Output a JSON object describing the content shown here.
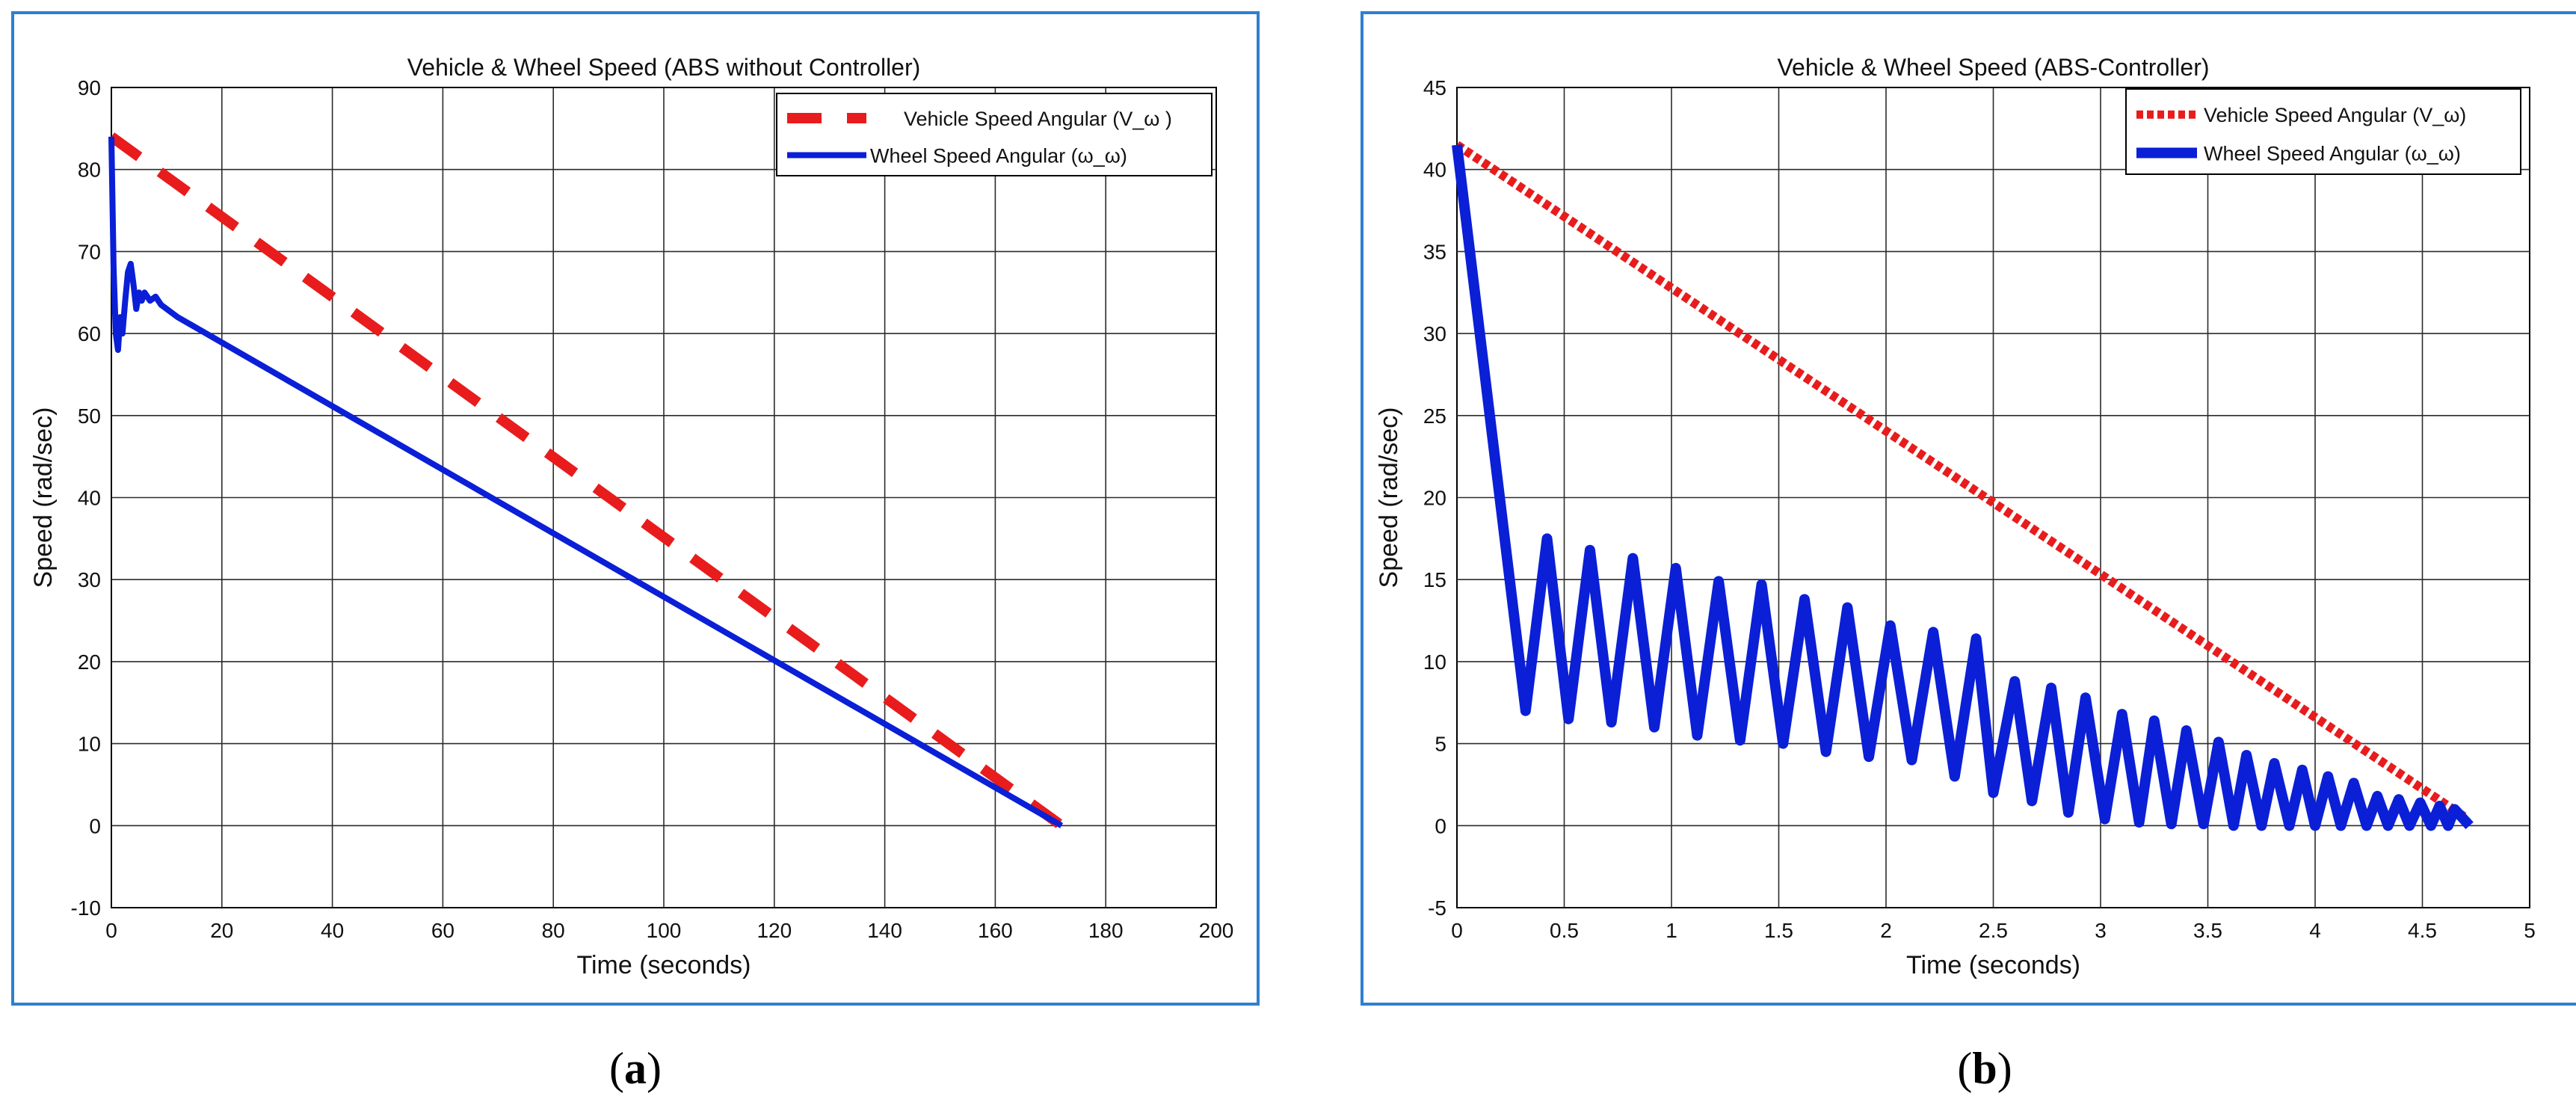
{
  "colors": {
    "frame": "#2f7fd0",
    "vehicle": "#e81c1c",
    "wheel": "#0a1fd6",
    "grid": "#2b2b2b",
    "axes_bg": "#ffffff"
  },
  "chart_data": [
    {
      "id": "a",
      "type": "line",
      "title": "Vehicle & Wheel Speed (ABS without Controller)",
      "xlabel": "Time (seconds)",
      "ylabel": "Speed (rad/sec)",
      "xlim": [
        0,
        200
      ],
      "ylim": [
        -10,
        90
      ],
      "xticks": [
        0,
        20,
        40,
        60,
        80,
        100,
        120,
        140,
        160,
        180,
        200
      ],
      "yticks": [
        -10,
        0,
        10,
        20,
        30,
        40,
        50,
        60,
        70,
        80,
        90
      ],
      "grid": true,
      "legend_position": "top-right",
      "series": [
        {
          "name": "Vehicle Speed Angular (V_ω )",
          "style": "dashed",
          "color": "#e81c1c",
          "x": [
            0,
            172
          ],
          "y": [
            84,
            0
          ]
        },
        {
          "name": "Wheel Speed Angular (ω_ω)",
          "style": "solid",
          "color": "#0a1fd6",
          "x": [
            0,
            0.4,
            0.8,
            1.2,
            1.6,
            2.0,
            2.5,
            3.0,
            3.5,
            4.0,
            4.5,
            5.0,
            5.5,
            6.0,
            7.0,
            8.0,
            9.0,
            10.0,
            12.0,
            172.0
          ],
          "y": [
            84,
            68,
            60,
            58,
            62,
            60,
            64,
            67.5,
            68.5,
            66,
            63,
            65,
            64,
            65,
            64,
            64.5,
            63.5,
            63,
            62,
            0
          ]
        }
      ],
      "caption": "a"
    },
    {
      "id": "b",
      "type": "line",
      "title": "Vehicle & Wheel Speed (ABS-Controller)",
      "xlabel": "Time (seconds)",
      "ylabel": "Speed (rad/sec)",
      "xlim": [
        0,
        5
      ],
      "ylim": [
        -5,
        45
      ],
      "xticks": [
        0,
        0.5,
        1,
        1.5,
        2,
        2.5,
        3,
        3.5,
        4,
        4.5,
        5
      ],
      "yticks": [
        -5,
        0,
        5,
        10,
        15,
        20,
        25,
        30,
        35,
        40,
        45
      ],
      "grid": true,
      "legend_position": "top-right",
      "series": [
        {
          "name": "Vehicle Speed Angular (V_ω)",
          "style": "dotted",
          "color": "#e81c1c",
          "x": [
            0,
            4.7
          ],
          "y": [
            41.5,
            0.5
          ]
        },
        {
          "name": "Wheel Speed Angular (ω_ω)",
          "style": "solid",
          "color": "#0a1fd6",
          "start": [
            0,
            41.5
          ],
          "first_min": [
            0.32,
            7
          ],
          "peaks": [
            [
              0.42,
              17.5
            ],
            [
              0.62,
              16.8
            ],
            [
              0.82,
              16.3
            ],
            [
              1.02,
              15.7
            ],
            [
              1.22,
              14.9
            ],
            [
              1.42,
              14.7
            ],
            [
              1.62,
              13.8
            ],
            [
              1.82,
              13.3
            ],
            [
              2.02,
              12.2
            ],
            [
              2.22,
              11.8
            ],
            [
              2.42,
              11.4
            ],
            [
              2.6,
              8.8
            ],
            [
              2.77,
              8.4
            ],
            [
              2.93,
              7.8
            ],
            [
              3.1,
              6.8
            ],
            [
              3.25,
              6.4
            ],
            [
              3.4,
              5.8
            ],
            [
              3.55,
              5.1
            ],
            [
              3.68,
              4.3
            ],
            [
              3.81,
              3.8
            ],
            [
              3.94,
              3.4
            ],
            [
              4.06,
              3.0
            ],
            [
              4.18,
              2.6
            ],
            [
              4.29,
              1.8
            ],
            [
              4.39,
              1.6
            ],
            [
              4.49,
              1.4
            ],
            [
              4.58,
              1.2
            ],
            [
              4.65,
              1.0
            ]
          ],
          "troughs": [
            [
              0.52,
              6.5
            ],
            [
              0.72,
              6.3
            ],
            [
              0.92,
              6.0
            ],
            [
              1.12,
              5.5
            ],
            [
              1.32,
              5.2
            ],
            [
              1.52,
              5.0
            ],
            [
              1.72,
              4.5
            ],
            [
              1.92,
              4.2
            ],
            [
              2.12,
              4.0
            ],
            [
              2.32,
              3.0
            ],
            [
              2.5,
              2.0
            ],
            [
              2.68,
              1.5
            ],
            [
              2.85,
              0.8
            ],
            [
              3.02,
              0.4
            ],
            [
              3.18,
              0.2
            ],
            [
              3.33,
              0.1
            ],
            [
              3.48,
              0.1
            ],
            [
              3.62,
              0.0
            ],
            [
              3.75,
              0.0
            ],
            [
              3.88,
              0.0
            ],
            [
              4.0,
              0.0
            ],
            [
              4.12,
              0.0
            ],
            [
              4.24,
              0.0
            ],
            [
              4.34,
              0.0
            ],
            [
              4.44,
              0.0
            ],
            [
              4.54,
              0.0
            ],
            [
              4.62,
              0.0
            ],
            [
              4.72,
              0.0
            ]
          ],
          "end": [
            4.72,
            0
          ]
        }
      ],
      "caption": "b"
    }
  ]
}
